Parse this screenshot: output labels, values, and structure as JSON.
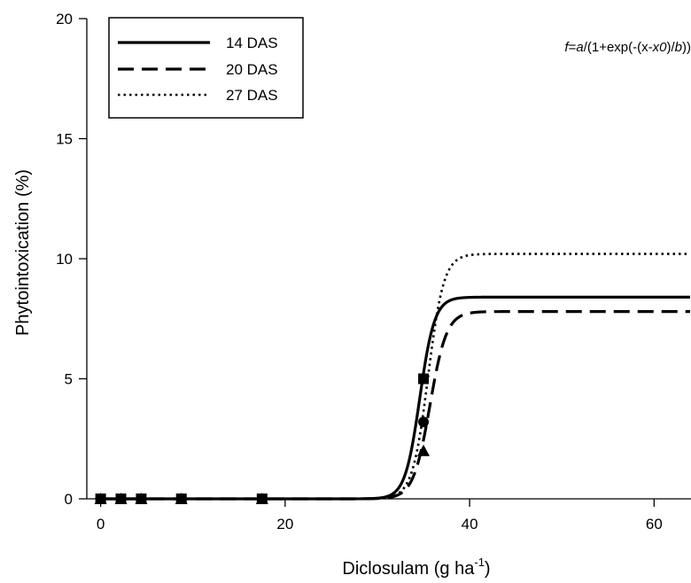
{
  "chart_data": {
    "type": "line",
    "xlabel": "Diclosulam (g ha",
    "xlabel_sup": "-1",
    "xlabel_end": ")",
    "ylabel": "Phytointoxication (%)",
    "xlim": [
      -1.5,
      64
    ],
    "ylim": [
      0,
      20
    ],
    "xticks": [
      0,
      20,
      40,
      60
    ],
    "yticks": [
      0,
      5,
      10,
      15,
      20
    ],
    "grid": false,
    "legend_position": "top-left",
    "formula": {
      "prefix": "f",
      "eq": "=",
      "a": "a",
      "mid1": "/(1+exp(-(x-",
      "x0": "x0",
      "mid2": ")/",
      "b": "b",
      "end": "))"
    },
    "series": [
      {
        "name": "14 DAS",
        "style": "solid",
        "a": 8.4,
        "x0": 34.6,
        "b": 0.8,
        "points": [
          [
            0,
            0
          ],
          [
            2.2,
            0
          ],
          [
            4.4,
            0
          ],
          [
            8.75,
            0
          ],
          [
            17.5,
            0
          ],
          [
            35,
            5
          ]
        ],
        "marker": "square"
      },
      {
        "name": "20 DAS",
        "style": "dashed",
        "a": 7.8,
        "x0": 35.7,
        "b": 0.9,
        "points": [
          [
            0,
            0
          ],
          [
            2.2,
            0
          ],
          [
            4.4,
            0
          ],
          [
            8.75,
            0
          ],
          [
            17.5,
            0
          ],
          [
            35,
            2
          ]
        ],
        "marker": "triangle"
      },
      {
        "name": "27 DAS",
        "style": "dotted",
        "a": 10.2,
        "x0": 35.5,
        "b": 0.85,
        "points": [
          [
            0,
            0
          ],
          [
            2.2,
            0
          ],
          [
            4.4,
            0
          ],
          [
            8.75,
            0
          ],
          [
            17.5,
            0
          ],
          [
            35,
            3.2
          ]
        ],
        "marker": "circle"
      }
    ]
  }
}
